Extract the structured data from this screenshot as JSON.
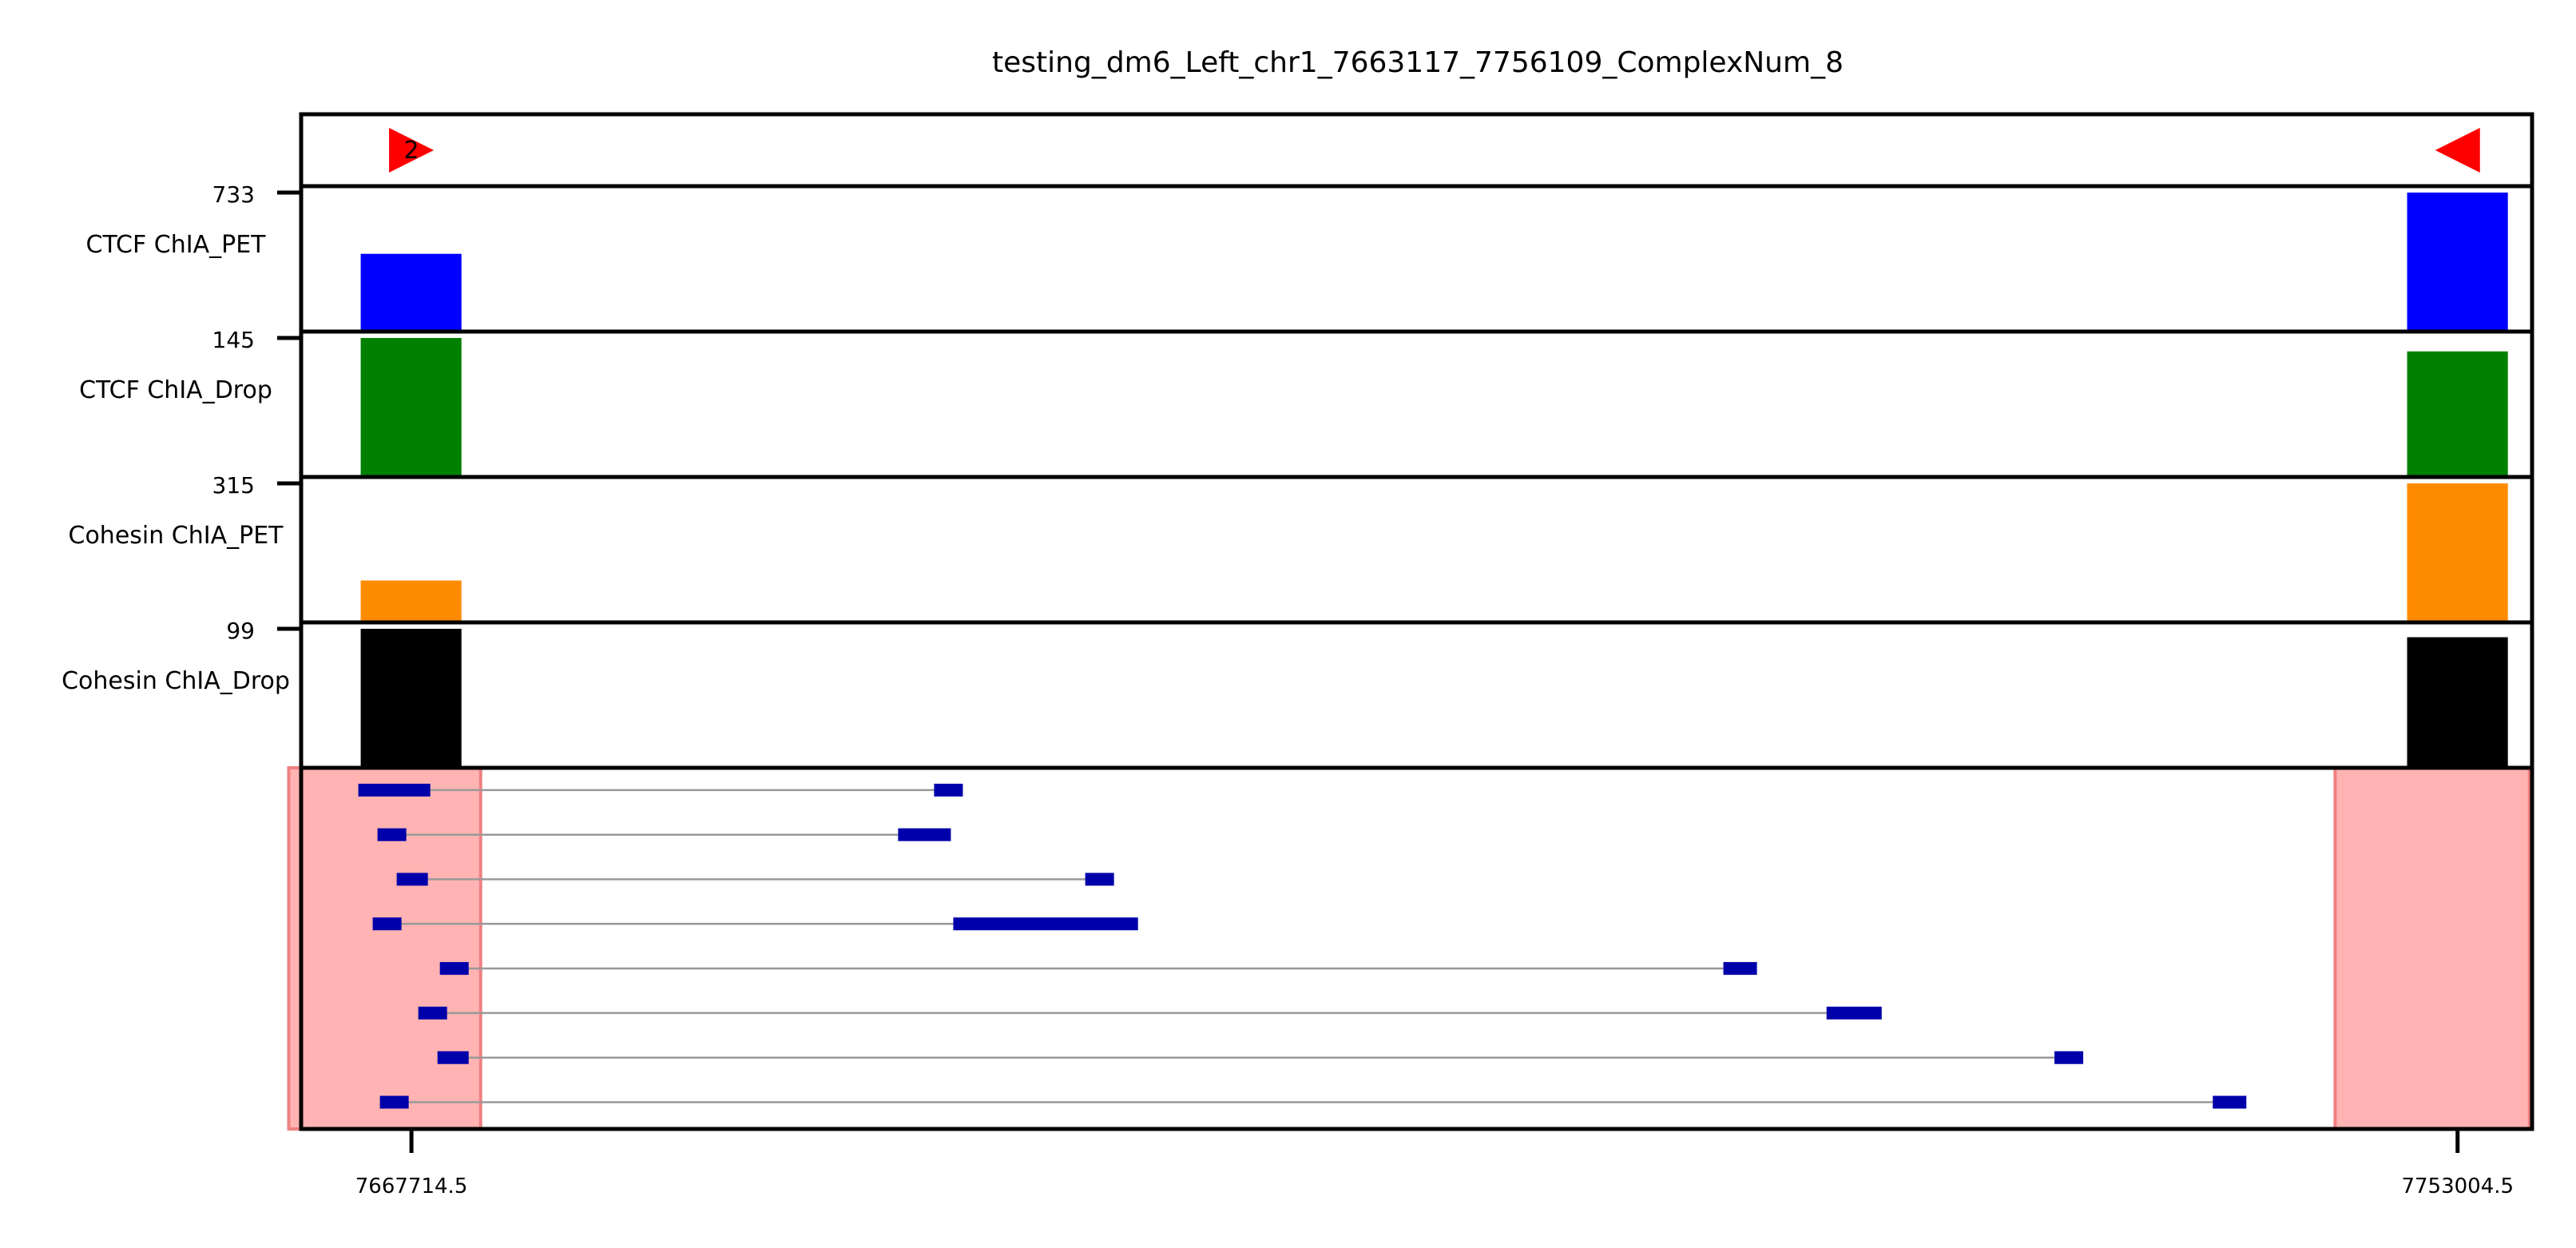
{
  "chart_data": {
    "type": "genome_browser",
    "title": "testing_dm6_Left_chr1_7663117_7756109_ComplexNum_8",
    "x_range": [
      7663117,
      7756109
    ],
    "x_ticks": [
      {
        "value": 7667714.5,
        "label": "7667714.5"
      },
      {
        "value": 7753004.5,
        "label": "7753004.5"
      }
    ],
    "anchors": [
      {
        "center": 7667714.5,
        "start": 7665600,
        "end": 7669800,
        "direction": "forward",
        "label": "2"
      },
      {
        "center": 7753004.5,
        "start": 7750900,
        "end": 7755100,
        "direction": "reverse",
        "label": ""
      }
    ],
    "tracks": [
      {
        "name": "CTCF ChIA_PET",
        "max_label": "733",
        "max": 733,
        "color": "#0000ff",
        "values": [
          410,
          733
        ]
      },
      {
        "name": "CTCF ChIA_Drop",
        "max_label": "145",
        "max": 145,
        "color": "#008000",
        "values": [
          145,
          131
        ]
      },
      {
        "name": "Cohesin ChIA_PET",
        "max_label": "315",
        "max": 315,
        "color": "#ff8c00",
        "values": [
          95,
          315
        ]
      },
      {
        "name": "Cohesin ChIA_Drop",
        "max_label": "99",
        "max": 99,
        "color": "#000000",
        "values": [
          99,
          93
        ]
      }
    ],
    "highlight_regions": [
      {
        "start": 7662600,
        "end": 7670600
      },
      {
        "start": 7747900,
        "end": 7756000
      }
    ],
    "complexes": [
      {
        "fragments": [
          [
            7665500,
            7668500
          ],
          [
            7689500,
            7690700
          ]
        ]
      },
      {
        "fragments": [
          [
            7666300,
            7667500
          ],
          [
            7688000,
            7690200
          ]
        ]
      },
      {
        "fragments": [
          [
            7667100,
            7668400
          ],
          [
            7695800,
            7697000
          ]
        ]
      },
      {
        "fragments": [
          [
            7666100,
            7667300
          ],
          [
            7690300,
            7698000
          ]
        ]
      },
      {
        "fragments": [
          [
            7668900,
            7670100
          ],
          [
            7722400,
            7723800
          ]
        ]
      },
      {
        "fragments": [
          [
            7668000,
            7669200
          ],
          [
            7726700,
            7729000
          ]
        ]
      },
      {
        "fragments": [
          [
            7668800,
            7670100
          ],
          [
            7736200,
            7737400
          ]
        ]
      },
      {
        "fragments": [
          [
            7666400,
            7667600
          ],
          [
            7742800,
            7744200
          ]
        ]
      }
    ],
    "colors": {
      "fragment": "#0000aa",
      "connector": "#999999",
      "highlight": "#ffb3b3",
      "highlight_edge": "#f08080",
      "anchor_arrow": "#ff0000"
    }
  }
}
